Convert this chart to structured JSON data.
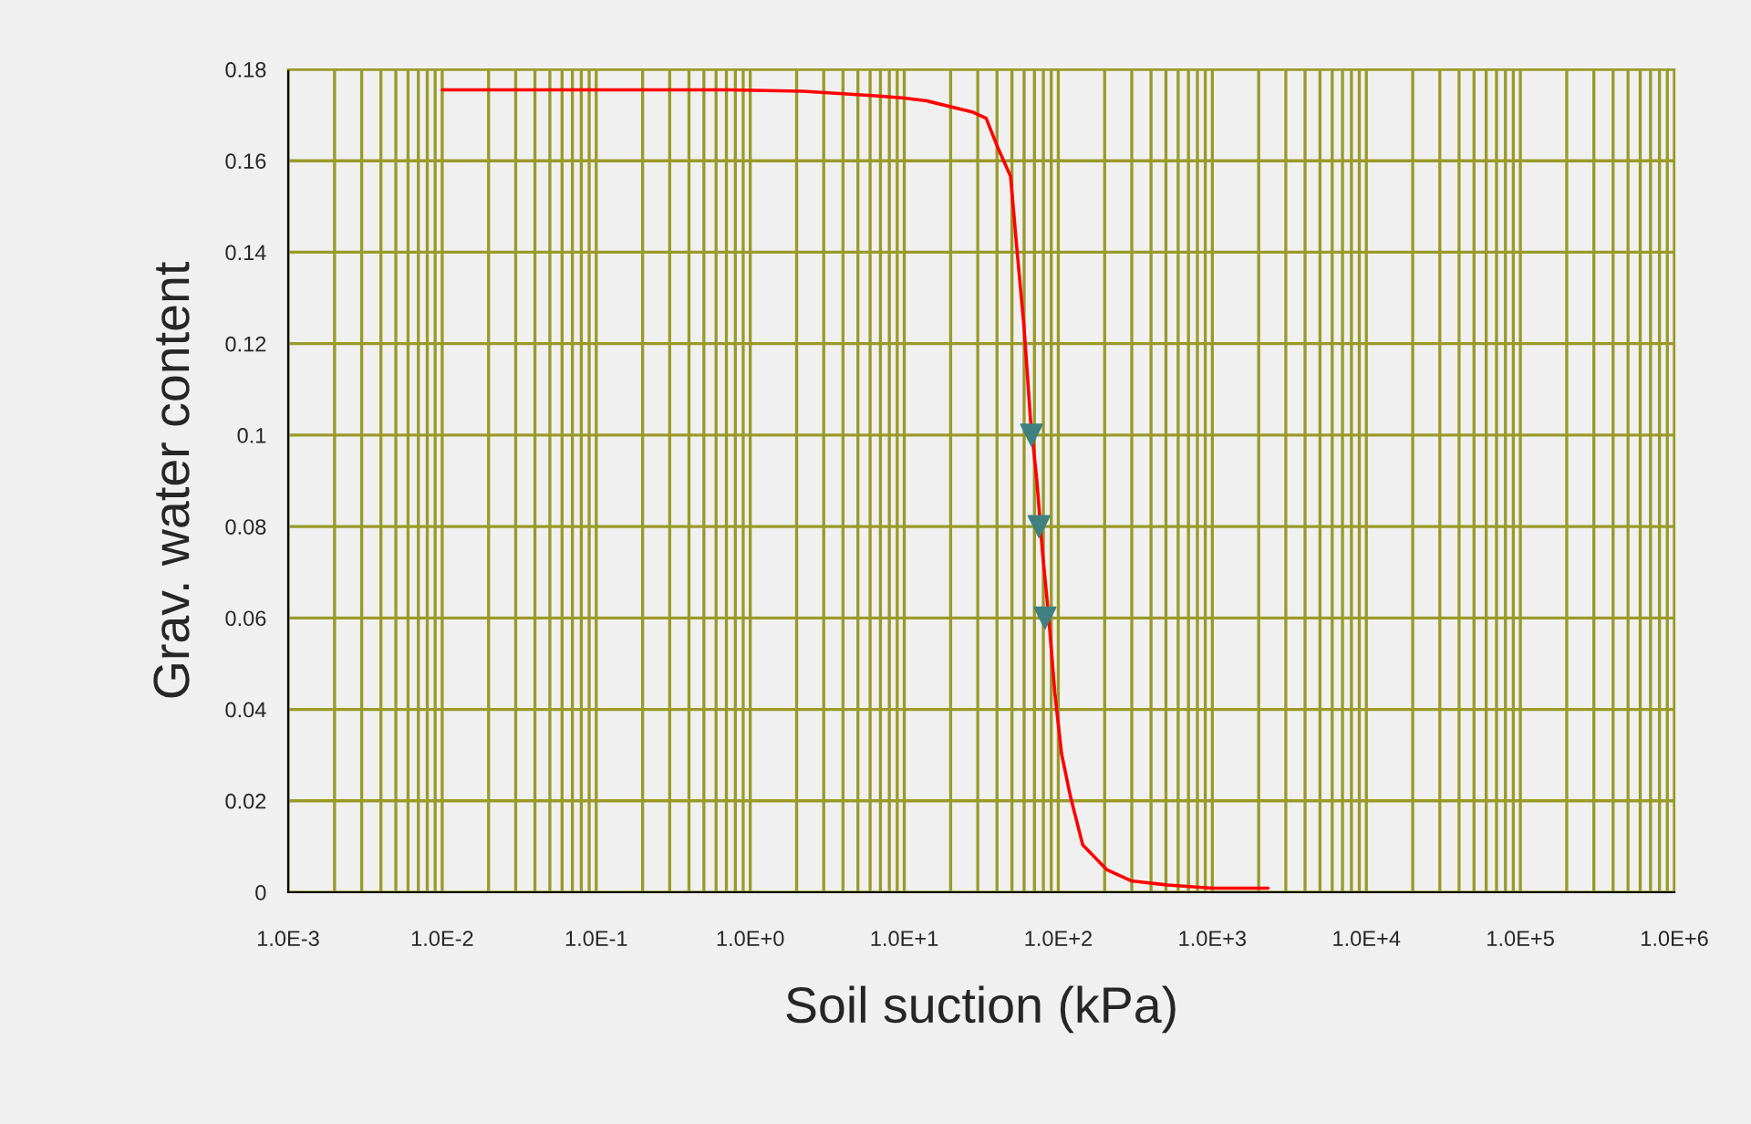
{
  "chart_data": {
    "type": "line",
    "xlabel": "Soil suction (kPa)",
    "ylabel": "Grav. water content",
    "log": "x",
    "grid": true,
    "marker": "none",
    "xlim": [
      0.001,
      1000000
    ],
    "xticks": [
      {
        "value": 0.001,
        "label": "1.0E-3"
      },
      {
        "value": 0.01,
        "label": "1.0E-2"
      },
      {
        "value": 0.1,
        "label": "1.0E-1"
      },
      {
        "value": 1,
        "label": "1.0E+0"
      },
      {
        "value": 10,
        "label": "1.0E+1"
      },
      {
        "value": 100,
        "label": "1.0E+2"
      },
      {
        "value": 1000,
        "label": "1.0E+3"
      },
      {
        "value": 10000,
        "label": "1.0E+4"
      },
      {
        "value": 100000,
        "label": "1.0E+5"
      },
      {
        "value": 1000000,
        "label": "1.0E+6"
      }
    ],
    "ylim": [
      0,
      0.18
    ],
    "yticks": [
      0,
      0.02,
      0.04,
      0.06,
      0.08,
      0.1,
      0.12,
      0.14,
      0.16,
      0.18
    ],
    "series": [
      {
        "color": "#ff0000",
        "line_style": "solid",
        "x": [
          0.01,
          0.74,
          2.2,
          6.5,
          10,
          14,
          28,
          34,
          40,
          49,
          53,
          60,
          66,
          72.5,
          79,
          87,
          95,
          105,
          120,
          144,
          207,
          297,
          510,
          1000,
          2300
        ],
        "values": [
          0.1755,
          0.1755,
          0.1752,
          0.1742,
          0.1737,
          0.1731,
          0.1706,
          0.1693,
          0.1633,
          0.1566,
          0.1433,
          0.1234,
          0.1034,
          0.0902,
          0.0743,
          0.0595,
          0.0435,
          0.0303,
          0.0209,
          0.0104,
          0.0049,
          0.0025,
          0.0016,
          0.0009,
          0.0009
        ]
      },
      {
        "type": "scatter",
        "color": "#408080",
        "marker": "triangle",
        "x": [
          67,
          75,
          82
        ],
        "values": [
          0.1,
          0.08,
          0.06
        ]
      }
    ]
  }
}
